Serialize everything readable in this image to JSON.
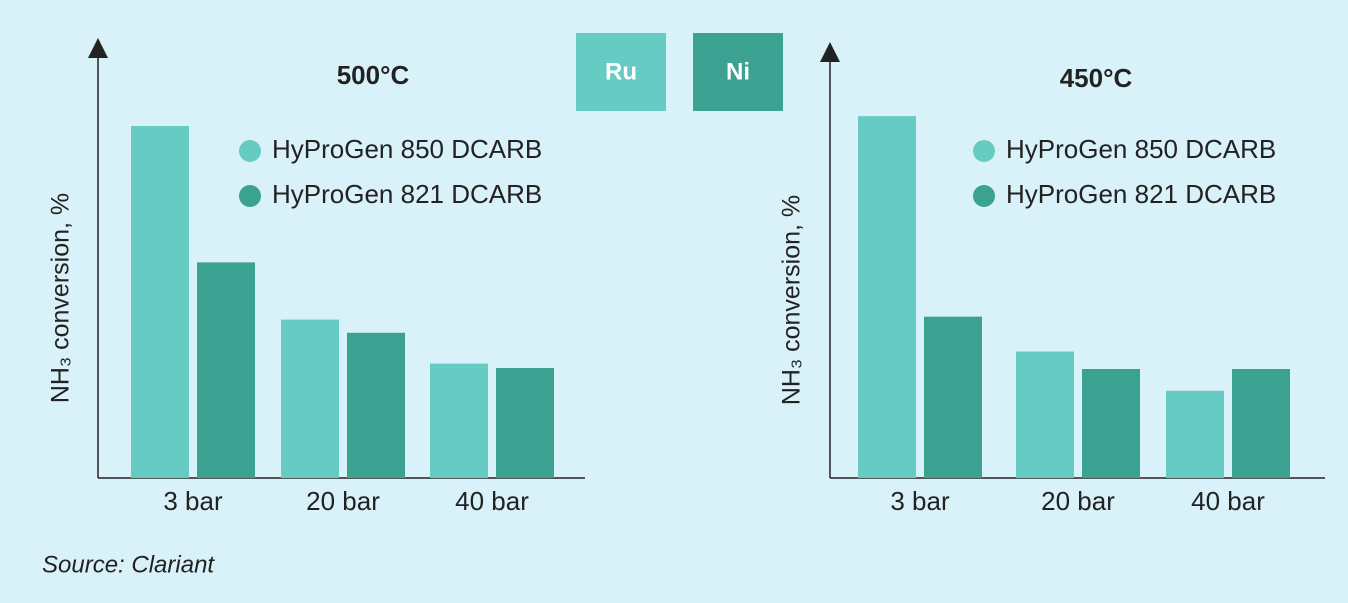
{
  "chart_data": [
    {
      "type": "bar",
      "title": "500°C",
      "y_label": "NH₃ conversion, %",
      "categories": [
        "3 bar",
        "20 bar",
        "40 bar"
      ],
      "series": [
        {
          "name": "HyProGen 850 DCARB",
          "color": "#66cbc3",
          "values": [
            80,
            36,
            26
          ]
        },
        {
          "name": "HyProGen 821 DCARB",
          "color": "#3ba190",
          "values": [
            49,
            33,
            25
          ]
        }
      ],
      "ylim": [
        0,
        100
      ]
    },
    {
      "type": "bar",
      "title": "450°C",
      "y_label": "NH₃ conversion, %",
      "categories": [
        "3 bar",
        "20 bar",
        "40 bar"
      ],
      "series": [
        {
          "name": "HyProGen 850 DCARB",
          "color": "#66cbc3",
          "values": [
            83,
            29,
            20
          ]
        },
        {
          "name": "HyProGen 821 DCARB",
          "color": "#3ba190",
          "values": [
            37,
            25,
            25
          ]
        }
      ],
      "ylim": [
        0,
        100
      ]
    }
  ],
  "catalyst_key": [
    {
      "label": "Ru",
      "color": "#66cbc3"
    },
    {
      "label": "Ni",
      "color": "#3ba190"
    }
  ],
  "source": "Source: Clariant"
}
